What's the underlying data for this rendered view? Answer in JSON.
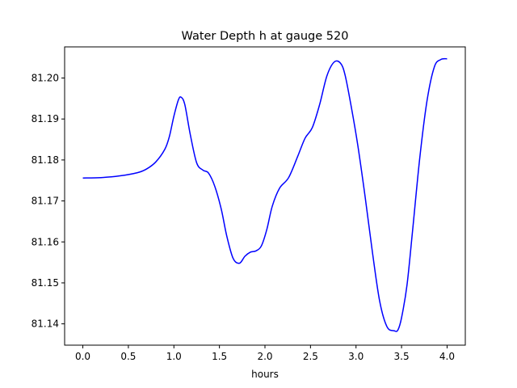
{
  "chart_data": {
    "type": "line",
    "title": "Water Depth h at gauge 520",
    "xlabel": "hours",
    "ylabel": "",
    "xlim": [
      -0.2,
      4.2
    ],
    "ylim": [
      81.1348,
      81.2076
    ],
    "x_ticks": [
      0.0,
      0.5,
      1.0,
      1.5,
      2.0,
      2.5,
      3.0,
      3.5,
      4.0
    ],
    "x_tick_labels": [
      "0.0",
      "0.5",
      "1.0",
      "1.5",
      "2.0",
      "2.5",
      "3.0",
      "3.5",
      "4.0"
    ],
    "y_ticks": [
      81.14,
      81.15,
      81.16,
      81.17,
      81.18,
      81.19,
      81.2
    ],
    "y_tick_labels": [
      "81.14",
      "81.15",
      "81.16",
      "81.17",
      "81.18",
      "81.19",
      "81.20"
    ],
    "grid": false,
    "colors": {
      "line": "#0000ff",
      "axes": "#000000",
      "background": "#ffffff"
    },
    "series": [
      {
        "x": [
          0.0,
          0.2,
          0.4,
          0.6,
          0.7,
          0.8,
          0.9,
          0.95,
          1.0,
          1.05,
          1.08,
          1.12,
          1.18,
          1.25,
          1.32,
          1.38,
          1.45,
          1.52,
          1.58,
          1.65,
          1.72,
          1.78,
          1.84,
          1.9,
          1.96,
          2.02,
          2.08,
          2.16,
          2.26,
          2.36,
          2.44,
          2.52,
          2.6,
          2.68,
          2.76,
          2.83,
          2.88,
          2.95,
          3.02,
          3.1,
          3.18,
          3.26,
          3.34,
          3.42,
          3.46,
          3.5,
          3.56,
          3.62,
          3.7,
          3.78,
          3.86,
          3.93,
          4.0
        ],
        "y": [
          81.1756,
          81.1757,
          81.1761,
          81.1769,
          81.1778,
          81.1795,
          81.1826,
          81.1857,
          81.1907,
          81.1947,
          81.1953,
          81.1935,
          81.1862,
          81.1793,
          81.1775,
          81.1768,
          81.1735,
          81.168,
          81.1615,
          81.156,
          81.1548,
          81.1565,
          81.1575,
          81.1578,
          81.159,
          81.163,
          81.1687,
          81.1731,
          81.1757,
          81.1809,
          81.1853,
          81.1879,
          81.1935,
          81.2005,
          81.2039,
          81.2036,
          81.2007,
          81.1927,
          81.1835,
          81.171,
          81.1575,
          81.1455,
          81.1393,
          81.1383,
          81.1385,
          81.1415,
          81.1495,
          81.1625,
          81.1805,
          81.1945,
          81.2027,
          81.2045,
          81.2047
        ]
      }
    ]
  }
}
